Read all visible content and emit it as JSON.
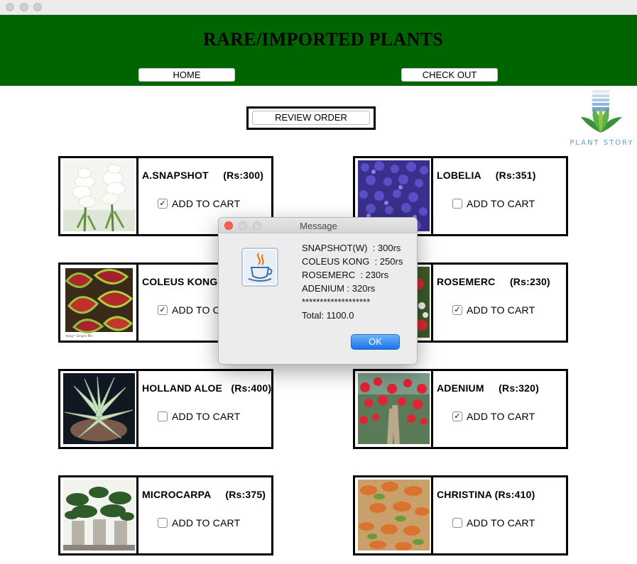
{
  "window": {
    "title": "RARE/IMPORTED PLANTS"
  },
  "nav": {
    "home_label": "HOME",
    "checkout_label": "CHECK OUT",
    "review_label": "REVIEW ORDER"
  },
  "brand": {
    "logo_text": "PLANT STORY",
    "header_color": "#006400"
  },
  "products": [
    {
      "name": "A.SNAPSHOT     (Rs:300)",
      "cart_label": "ADD TO CART",
      "checked": true,
      "icon": "white-snapdragon-image"
    },
    {
      "name": "LOBELIA     (Rs:351)",
      "cart_label": "ADD TO CART",
      "checked": false,
      "icon": "blue-lobelia-image"
    },
    {
      "name": "COLEUS KONG",
      "cart_label": "ADD TO CART",
      "checked": true,
      "icon": "coleus-leaves-image"
    },
    {
      "name": "ROSEMERC     (Rs:230)",
      "cart_label": "ADD TO CART",
      "checked": true,
      "icon": "red-flower-image"
    },
    {
      "name": "HOLLAND ALOE   (Rs:400)",
      "cart_label": "ADD TO CART",
      "checked": false,
      "icon": "aloe-plant-image"
    },
    {
      "name": "ADENIUM     (Rs:320)",
      "cart_label": "ADD TO CART",
      "checked": true,
      "icon": "adenium-image"
    },
    {
      "name": "MICROCARPA     (Rs:375)",
      "cart_label": "ADD TO CART",
      "checked": false,
      "icon": "bonsai-image"
    },
    {
      "name": "CHRISTINA (Rs:410)",
      "cart_label": "ADD TO CART",
      "checked": false,
      "icon": "shrub-image"
    }
  ],
  "dialog": {
    "title": "Message",
    "lines": [
      "SNAPSHOT(W)  : 300rs",
      "COLEUS KONG  : 250rs",
      "ROSEMERC  : 230rs",
      "ADENIUM : 320rs",
      "*******************",
      "Total: 1100.0"
    ],
    "ok_label": "OK",
    "icon": "java-coffee-cup-icon"
  }
}
